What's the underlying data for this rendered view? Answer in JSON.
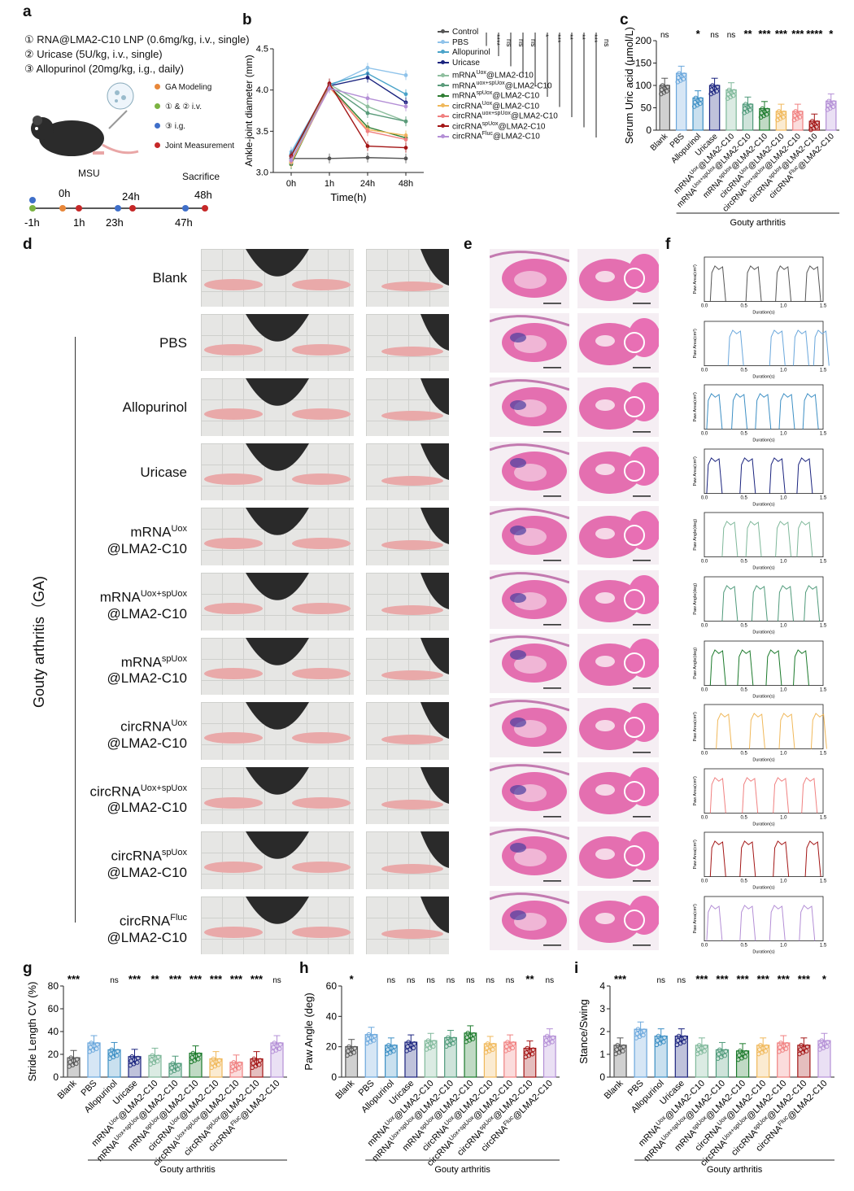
{
  "panels": {
    "a": "a",
    "b": "b",
    "c": "c",
    "d": "d",
    "e": "e",
    "f": "f",
    "g": "g",
    "h": "h",
    "i": "i"
  },
  "panel_a": {
    "protocol": [
      "① RNA@LMA2-C10 LNP (0.6mg/kg, i.v., single)",
      "② Uricase (5U/kg, i.v., single)",
      "③ Allopurinol (20mg/kg, i.g., daily)"
    ],
    "legend": [
      {
        "label": "GA Modeling",
        "color": "#e8873a"
      },
      {
        "label": "① & ② i.v.",
        "color": "#7cb342"
      },
      {
        "label": "③ i.g.",
        "color": "#3f6fc9"
      },
      {
        "label": "Joint Measurement",
        "color": "#c62828"
      }
    ],
    "msu": "MSU",
    "sacrifice": "Sacrifice",
    "timeline_top": [
      "0h",
      "24h",
      "48h"
    ],
    "timeline_bottom": [
      "-1h",
      "1h",
      "23h",
      "47h"
    ]
  },
  "groups": [
    {
      "main": "Blank",
      "sup": "",
      "line2": "",
      "color": "#555555"
    },
    {
      "main": "PBS",
      "sup": "",
      "line2": "",
      "color": "#6aa7dc"
    },
    {
      "main": "Allopurinol",
      "sup": "",
      "line2": "",
      "color": "#3d8fc4"
    },
    {
      "main": "Uricase",
      "sup": "",
      "line2": "",
      "color": "#1a237e"
    },
    {
      "main": "mRNA",
      "sup": "Uox",
      "line2": "@LMA2-C10",
      "color": "#7fb89a"
    },
    {
      "main": "mRNA",
      "sup": "Uox+spUox",
      "line2": "@LMA2-C10",
      "color": "#4f9a7a"
    },
    {
      "main": "mRNA",
      "sup": "spUox",
      "line2": "@LMA2-C10",
      "color": "#1b7a2b"
    },
    {
      "main": "circRNA",
      "sup": "Uox",
      "line2": "@LMA2-C10",
      "color": "#f0b85a"
    },
    {
      "main": "circRNA",
      "sup": "Uox+spUox",
      "line2": "@LMA2-C10",
      "color": "#f08080"
    },
    {
      "main": "circRNA",
      "sup": "spUox",
      "line2": "@LMA2-C10",
      "color": "#a31515"
    },
    {
      "main": "circRNA",
      "sup": "Fluc",
      "line2": "@LMA2-C10",
      "color": "#b48fd6"
    }
  ],
  "panel_d": {
    "side_label": "Gouty arthritis（GA)"
  },
  "chart_data": [
    {
      "id": "b",
      "type": "line",
      "xlabel": "Time(h)",
      "ylabel": "Ankle-joint diameter (mm)",
      "categories": [
        "0h",
        "1h",
        "24h",
        "48h"
      ],
      "ylim": [
        3.0,
        4.5
      ],
      "yticks": [
        "3.0",
        "3.5",
        "4.0",
        "4.5"
      ],
      "series": [
        {
          "name": "Control",
          "values": [
            3.17,
            3.17,
            3.18,
            3.17
          ],
          "color": "#555555"
        },
        {
          "name": "PBS",
          "values": [
            3.25,
            4.05,
            4.27,
            4.18
          ],
          "color": "#8fc3ea"
        },
        {
          "name": "Allopurinol",
          "values": [
            3.22,
            4.07,
            4.2,
            3.95
          ],
          "color": "#4aa3c9"
        },
        {
          "name": "Uricase",
          "values": [
            3.2,
            4.05,
            4.15,
            3.85
          ],
          "color": "#1a237e"
        },
        {
          "name": "mRNA",
          "sup": "Uox",
          "suffix": "@LMA2-C10",
          "values": [
            3.15,
            4.07,
            3.8,
            3.62
          ],
          "color": "#8fbf9f"
        },
        {
          "name": "mRNA",
          "sup": "uox+spUox",
          "suffix": "@LMA2-C10",
          "values": [
            3.12,
            4.05,
            3.72,
            3.62
          ],
          "color": "#5a9b7a"
        },
        {
          "name": "mRNA",
          "sup": "spUox",
          "suffix": "@LMA2-C10",
          "values": [
            3.1,
            4.05,
            3.55,
            3.42
          ],
          "color": "#2e7d32"
        },
        {
          "name": "circRNA",
          "sup": "Uox",
          "suffix": "@LMA2-C10",
          "values": [
            3.12,
            4.03,
            3.52,
            3.45
          ],
          "color": "#f0b85a"
        },
        {
          "name": "circRNA",
          "sup": "uox+spUox",
          "suffix": "@LMA2-C10",
          "values": [
            3.14,
            4.04,
            3.5,
            3.4
          ],
          "color": "#f08080"
        },
        {
          "name": "circRNA",
          "sup": "spUox",
          "suffix": "@LMA2-C10",
          "values": [
            3.2,
            4.08,
            3.32,
            3.3
          ],
          "color": "#a31515"
        },
        {
          "name": "circRNA",
          "sup": "Fluc",
          "suffix": "@LMA2-C10",
          "values": [
            3.15,
            4.02,
            3.9,
            3.8
          ],
          "color": "#b48fd6"
        }
      ],
      "significance": [
        "****",
        "ns",
        "ns",
        "ns",
        "*",
        "***",
        "**",
        "**",
        "***",
        "ns"
      ]
    },
    {
      "id": "c",
      "type": "bar",
      "ylabel": "Serum Uric acid (μmol/L)",
      "ylim": [
        0,
        200
      ],
      "yticks": [
        "0",
        "50",
        "100",
        "150",
        "200"
      ],
      "values": [
        100,
        127,
        72,
        100,
        90,
        58,
        48,
        42,
        42,
        20,
        65
      ],
      "significance": [
        "ns",
        "",
        "*",
        "ns",
        "ns",
        "**",
        "***",
        "***",
        "***",
        "****",
        "*"
      ],
      "group_label": "Gouty arthritis"
    },
    {
      "id": "g",
      "type": "bar",
      "ylabel": "Stride Length CV (%)",
      "ylim": [
        0,
        80
      ],
      "yticks": [
        "0",
        "20",
        "40",
        "60",
        "80"
      ],
      "values": [
        17,
        30,
        24,
        18,
        19,
        12,
        21,
        16,
        13,
        16,
        30
      ],
      "significance": [
        "***",
        "",
        "ns",
        "***",
        "**",
        "***",
        "***",
        "***",
        "***",
        "***",
        "ns"
      ],
      "group_label": "Gouty arthritis"
    },
    {
      "id": "h",
      "type": "bar",
      "ylabel": "Paw Angle (deg)",
      "ylim": [
        0,
        60
      ],
      "yticks": [
        "0",
        "20",
        "40",
        "60"
      ],
      "values": [
        20,
        28,
        21,
        23,
        24,
        26,
        29,
        22,
        23,
        19,
        27
      ],
      "significance": [
        "*",
        "",
        "ns",
        "ns",
        "ns",
        "ns",
        "ns",
        "ns",
        "ns",
        "**",
        "ns"
      ],
      "group_label": "Gouty arthritis"
    },
    {
      "id": "i",
      "type": "bar",
      "ylabel": "Stance/Swing",
      "ylim": [
        0,
        4
      ],
      "yticks": [
        "0",
        "1",
        "2",
        "3",
        "4"
      ],
      "values": [
        1.4,
        2.1,
        1.8,
        1.8,
        1.4,
        1.2,
        1.15,
        1.4,
        1.5,
        1.4,
        1.6
      ],
      "significance": [
        "***",
        "",
        "ns",
        "ns",
        "***",
        "***",
        "***",
        "***",
        "***",
        "***",
        "*"
      ],
      "group_label": "Gouty arthritis"
    }
  ],
  "panel_f": {
    "ylabels": [
      "Paw Area(cm²)",
      "Paw Area(cm²)",
      "Paw Area(cm²)",
      "Paw Area(cm²)",
      "Paw Angle(deg)",
      "Paw Angle(deg)",
      "Paw Angle(deg)",
      "Paw Area(cm²)",
      "Paw Area(cm²)",
      "Paw Area(cm²)",
      "Paw Area(cm²)"
    ],
    "xlabel": "Duration(s)",
    "xticks": [
      "0.0",
      "0.5",
      "1.0",
      "1.5"
    ]
  }
}
